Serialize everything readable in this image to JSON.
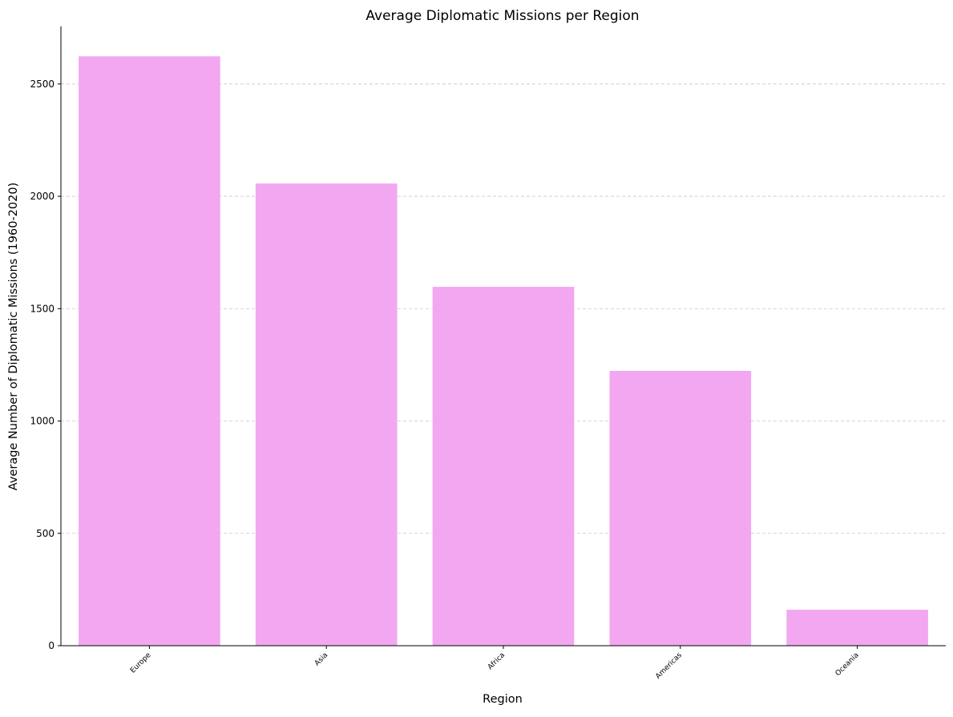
{
  "chart_data": {
    "type": "bar",
    "title": "Average Diplomatic Missions per Region",
    "xlabel": "Region",
    "ylabel": "Average Number of Diplomatic Missions (1960-2020)",
    "categories": [
      "Europe",
      "Asia",
      "Africa",
      "Americas",
      "Oceania"
    ],
    "values": [
      2623,
      2057,
      1597,
      1223,
      160
    ],
    "ylim": [
      0,
      2756
    ],
    "yticks": [
      0,
      500,
      1000,
      1500,
      2000,
      2500
    ],
    "bar_color": "#f2a7f0",
    "grid": {
      "y": true,
      "x": false,
      "style": "dashed",
      "color": "#c8c8c8"
    },
    "legend": "none"
  }
}
